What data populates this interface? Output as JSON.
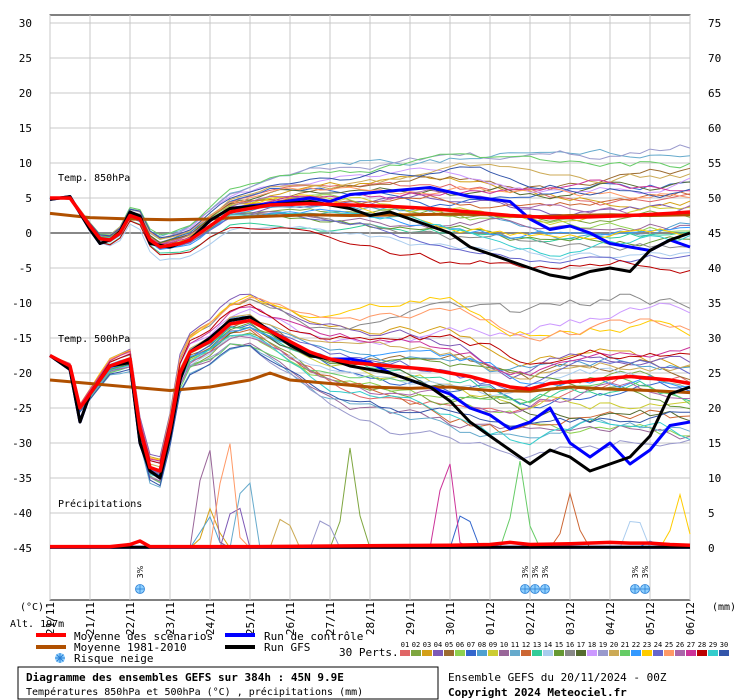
{
  "chart_data": {
    "type": "line",
    "title": "Diagramme des ensembles GEFS sur 384h : 45N 9.9E",
    "subtitle": "Températures 850hPa et 500hPa (°C) , précipitations (mm)",
    "left_axis_unit": "(°C)",
    "right_axis_unit": "(mm)",
    "left_ticks": [
      30,
      25,
      20,
      15,
      10,
      5,
      0,
      -5,
      -10,
      -15,
      -20,
      -25,
      -30,
      -35,
      -40,
      -45
    ],
    "right_ticks": [
      75,
      70,
      65,
      60,
      55,
      50,
      45,
      40,
      35,
      30,
      25,
      20,
      15,
      10,
      5,
      0
    ],
    "ylim": [
      -45,
      30
    ],
    "x_labels": [
      "21/11",
      "21/11",
      "22/11",
      "23/11",
      "24/11",
      "25/11",
      "26/11",
      "27/11",
      "28/11",
      "29/11",
      "30/11",
      "01/12",
      "02/12",
      "03/12",
      "04/12",
      "05/12",
      "06/12"
    ],
    "panel_labels": [
      "Temp. 850hPa",
      "Temp. 500hPa",
      "Précipitations"
    ],
    "altitude_label": "Alt. 197m",
    "snow_marker": "3%",
    "snow_markers_t": [
      9,
      47.5,
      48.5,
      49.5,
      58.5,
      59.5
    ],
    "t_max": 64,
    "series": [
      {
        "name": "Moyenne des scénarios",
        "color": "#ff0000",
        "temp850": [
          [
            0,
            5
          ],
          [
            2,
            5
          ],
          [
            4,
            1
          ],
          [
            5,
            -0.8
          ],
          [
            6,
            -1
          ],
          [
            7,
            0
          ],
          [
            8,
            2.5
          ],
          [
            9,
            2
          ],
          [
            10,
            -1
          ],
          [
            11,
            -2
          ],
          [
            13,
            -1.5
          ],
          [
            14,
            -1
          ],
          [
            16,
            1
          ],
          [
            18,
            3
          ],
          [
            22,
            4
          ],
          [
            26,
            4.2
          ],
          [
            30,
            4
          ],
          [
            34,
            3.8
          ],
          [
            38,
            3.5
          ],
          [
            42,
            3
          ],
          [
            46,
            2.5
          ],
          [
            50,
            2.2
          ],
          [
            54,
            2.3
          ],
          [
            58,
            2.5
          ],
          [
            62,
            2.8
          ],
          [
            64,
            3
          ]
        ],
        "temp500": [
          [
            0,
            -17.5
          ],
          [
            2,
            -19
          ],
          [
            3,
            -25
          ],
          [
            4,
            -23
          ],
          [
            6,
            -19
          ],
          [
            8,
            -18
          ],
          [
            9,
            -28
          ],
          [
            10,
            -33.5
          ],
          [
            11,
            -34
          ],
          [
            12,
            -28
          ],
          [
            13,
            -20
          ],
          [
            14,
            -17
          ],
          [
            16,
            -15.5
          ],
          [
            18,
            -13
          ],
          [
            20,
            -12.5
          ],
          [
            22,
            -14
          ],
          [
            24,
            -15.5
          ],
          [
            26,
            -17
          ],
          [
            28,
            -18
          ],
          [
            30,
            -18.5
          ],
          [
            34,
            -19
          ],
          [
            38,
            -19.5
          ],
          [
            42,
            -20.5
          ],
          [
            46,
            -22
          ],
          [
            48,
            -22.3
          ],
          [
            50,
            -21.5
          ],
          [
            54,
            -21
          ],
          [
            58,
            -20.5
          ],
          [
            62,
            -21
          ],
          [
            64,
            -21.5
          ]
        ],
        "precip": [
          [
            0,
            0.2
          ],
          [
            6,
            0.2
          ],
          [
            8,
            0.5
          ],
          [
            9,
            1
          ],
          [
            10,
            0.2
          ],
          [
            20,
            0.2
          ],
          [
            30,
            0.3
          ],
          [
            40,
            0.4
          ],
          [
            44,
            0.5
          ],
          [
            46,
            0.8
          ],
          [
            48,
            0.5
          ],
          [
            52,
            0.6
          ],
          [
            56,
            0.8
          ],
          [
            58,
            0.7
          ],
          [
            60,
            0.7
          ],
          [
            62,
            0.5
          ],
          [
            64,
            0.4
          ]
        ]
      },
      {
        "name": "Moyenne 1981-2010",
        "color": "#b05000",
        "temp850": [
          [
            0,
            2.8
          ],
          [
            2,
            2.5
          ],
          [
            4,
            2.2
          ],
          [
            8,
            2
          ],
          [
            12,
            1.9
          ],
          [
            16,
            2
          ],
          [
            20,
            2.3
          ],
          [
            26,
            2.6
          ],
          [
            30,
            2.5
          ],
          [
            36,
            2.6
          ],
          [
            40,
            2.7
          ],
          [
            44,
            2.6
          ],
          [
            48,
            2.3
          ],
          [
            52,
            2.5
          ],
          [
            56,
            2.6
          ],
          [
            60,
            2.5
          ],
          [
            64,
            2.6
          ]
        ],
        "temp500": [
          [
            0,
            -21
          ],
          [
            4,
            -21.5
          ],
          [
            8,
            -22
          ],
          [
            12,
            -22.5
          ],
          [
            16,
            -22
          ],
          [
            20,
            -21
          ],
          [
            22,
            -20
          ],
          [
            24,
            -21
          ],
          [
            28,
            -21.5
          ],
          [
            32,
            -22
          ],
          [
            36,
            -22.2
          ],
          [
            40,
            -22
          ],
          [
            44,
            -22.5
          ],
          [
            48,
            -22.6
          ],
          [
            52,
            -22
          ],
          [
            56,
            -22.3
          ],
          [
            60,
            -22.5
          ],
          [
            64,
            -22.8
          ]
        ]
      },
      {
        "name": "Run de contrôle",
        "color": "#0000ff",
        "temp850": [
          [
            0,
            4.8
          ],
          [
            2,
            5.2
          ],
          [
            4,
            0.5
          ],
          [
            5,
            -1.5
          ],
          [
            6,
            -1
          ],
          [
            7,
            0.2
          ],
          [
            8,
            3
          ],
          [
            9,
            2.4
          ],
          [
            10,
            -1.5
          ],
          [
            12,
            -2
          ],
          [
            14,
            -1
          ],
          [
            16,
            1.8
          ],
          [
            18,
            3.5
          ],
          [
            22,
            4.2
          ],
          [
            26,
            5
          ],
          [
            28,
            4.5
          ],
          [
            30,
            5.5
          ],
          [
            34,
            6
          ],
          [
            38,
            6.5
          ],
          [
            42,
            5.2
          ],
          [
            46,
            4.5
          ],
          [
            48,
            2
          ],
          [
            50,
            0.5
          ],
          [
            52,
            1
          ],
          [
            54,
            0
          ],
          [
            56,
            -1.5
          ],
          [
            58,
            -2
          ],
          [
            60,
            -2.5
          ],
          [
            62,
            -1
          ],
          [
            64,
            -2
          ]
        ],
        "temp500": [
          [
            0,
            -17.5
          ],
          [
            2,
            -19.5
          ],
          [
            3,
            -27
          ],
          [
            4,
            -23
          ],
          [
            6,
            -19
          ],
          [
            8,
            -18.5
          ],
          [
            9,
            -30
          ],
          [
            10,
            -34
          ],
          [
            11,
            -35
          ],
          [
            12,
            -29
          ],
          [
            13,
            -21
          ],
          [
            14,
            -17
          ],
          [
            16,
            -15
          ],
          [
            18,
            -12.5
          ],
          [
            20,
            -12
          ],
          [
            22,
            -14
          ],
          [
            24,
            -16
          ],
          [
            26,
            -17.5
          ],
          [
            28,
            -18
          ],
          [
            30,
            -18
          ],
          [
            32,
            -18.5
          ],
          [
            34,
            -20
          ],
          [
            36,
            -21
          ],
          [
            38,
            -22
          ],
          [
            40,
            -23
          ],
          [
            42,
            -25
          ],
          [
            44,
            -26
          ],
          [
            46,
            -28
          ],
          [
            48,
            -27
          ],
          [
            50,
            -25
          ],
          [
            52,
            -30
          ],
          [
            54,
            -32
          ],
          [
            56,
            -30
          ],
          [
            58,
            -33
          ],
          [
            60,
            -31
          ],
          [
            62,
            -27.5
          ],
          [
            64,
            -27
          ]
        ],
        "precip": [
          [
            0,
            0.1
          ],
          [
            64,
            0.1
          ]
        ]
      },
      {
        "name": "Run GFS",
        "color": "#000000",
        "temp850": [
          [
            0,
            4.8
          ],
          [
            2,
            5.2
          ],
          [
            4,
            0.5
          ],
          [
            5,
            -1.5
          ],
          [
            6,
            -1
          ],
          [
            7,
            0.2
          ],
          [
            8,
            3
          ],
          [
            9,
            2.4
          ],
          [
            10,
            -1.5
          ],
          [
            12,
            -2
          ],
          [
            14,
            -1
          ],
          [
            16,
            1.8
          ],
          [
            18,
            3.5
          ],
          [
            22,
            4
          ],
          [
            26,
            4.5
          ],
          [
            30,
            3.5
          ],
          [
            32,
            2.5
          ],
          [
            34,
            3
          ],
          [
            36,
            2
          ],
          [
            38,
            1
          ],
          [
            40,
            0
          ],
          [
            42,
            -2
          ],
          [
            44,
            -3
          ],
          [
            46,
            -4
          ],
          [
            48,
            -5
          ],
          [
            50,
            -6
          ],
          [
            52,
            -6.5
          ],
          [
            54,
            -5.5
          ],
          [
            56,
            -5
          ],
          [
            58,
            -5.5
          ],
          [
            60,
            -2.5
          ],
          [
            62,
            -1
          ],
          [
            64,
            0
          ]
        ],
        "temp500": [
          [
            0,
            -17.5
          ],
          [
            2,
            -19.5
          ],
          [
            3,
            -27
          ],
          [
            4,
            -23
          ],
          [
            6,
            -19
          ],
          [
            8,
            -18.5
          ],
          [
            9,
            -30
          ],
          [
            10,
            -34
          ],
          [
            11,
            -35
          ],
          [
            12,
            -29
          ],
          [
            13,
            -21
          ],
          [
            14,
            -17
          ],
          [
            16,
            -15
          ],
          [
            18,
            -12.5
          ],
          [
            20,
            -12
          ],
          [
            22,
            -14
          ],
          [
            24,
            -16
          ],
          [
            26,
            -17.5
          ],
          [
            28,
            -18
          ],
          [
            30,
            -19
          ],
          [
            34,
            -20
          ],
          [
            36,
            -21
          ],
          [
            38,
            -22
          ],
          [
            40,
            -24
          ],
          [
            42,
            -27
          ],
          [
            44,
            -29
          ],
          [
            46,
            -31
          ],
          [
            48,
            -33
          ],
          [
            50,
            -31
          ],
          [
            52,
            -32
          ],
          [
            54,
            -34
          ],
          [
            56,
            -33
          ],
          [
            58,
            -32
          ],
          [
            60,
            -29
          ],
          [
            62,
            -23
          ],
          [
            64,
            -22
          ]
        ],
        "precip": [
          [
            0,
            0.1
          ],
          [
            64,
            0.1
          ]
        ]
      }
    ],
    "perturbations_count": 30,
    "perturbation_labels": [
      "01",
      "02",
      "03",
      "04",
      "05",
      "06",
      "07",
      "08",
      "09",
      "10",
      "11",
      "12",
      "13",
      "14",
      "15",
      "16",
      "17",
      "18",
      "19",
      "20",
      "21",
      "22",
      "23",
      "24",
      "25",
      "26",
      "27",
      "28",
      "29",
      "30"
    ],
    "perturbation_colors": [
      "#e06666",
      "#7ea63f",
      "#d4a017",
      "#7d59b6",
      "#9c6b30",
      "#8fd14f",
      "#3366cc",
      "#4fa0d0",
      "#cccc33",
      "#996699",
      "#66aacc",
      "#cc6633",
      "#33cc99",
      "#aaccee",
      "#669933",
      "#888888",
      "#556b2f",
      "#cc99ff",
      "#9999cc",
      "#ccaa55",
      "#66cc66",
      "#3399ff",
      "#ffcc00",
      "#6666cc",
      "#ff9966",
      "#aa66aa",
      "#cc3399",
      "#bb0000",
      "#33cccc",
      "#3355aa"
    ]
  },
  "legend": {
    "mean_label": "Moyenne des scénarios",
    "climo_label": "Moyenne 1981-2010",
    "control_label": "Run de contrôle",
    "gfs_label": "Run GFS",
    "snow_label": "Risque neige",
    "perts_label": "30 Perts."
  },
  "footer": {
    "title": "Diagramme des ensembles GEFS sur 384h : 45N 9.9E",
    "subtitle": "Températures 850hPa et 500hPa (°C) , précipitations (mm)",
    "run_info": "Ensemble GEFS du 20/11/2024 - 00Z",
    "copyright": "Copyright 2024 Meteociel.fr"
  }
}
